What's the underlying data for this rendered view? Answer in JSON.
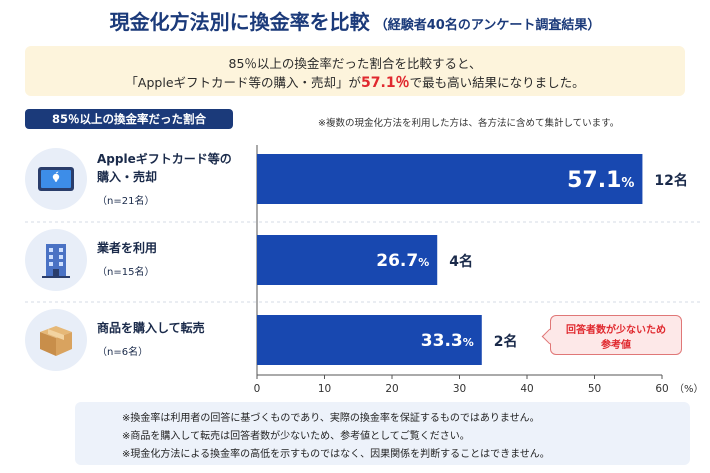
{
  "header": {
    "title": "現金化方法別に換金率を比較",
    "subtitle": "（経験者40名のアンケート調査結果）"
  },
  "summary": {
    "line1": "85％以上の換金率だった割合を比較すると、",
    "line2_pre": "「Appleギフトカード等の購入・売却」が",
    "line2_highlight": "57.1％",
    "line2_post": "で最も高い結果になりました。"
  },
  "section_label": "85％以上の換金率だった割合",
  "top_note": "※複数の現金化方法を利用した方は、各方法に含めて集計しています。",
  "rows": [
    {
      "label_line1": "Appleギフトカード等の",
      "label_line2": "購入・売却",
      "n": "（n=21名）",
      "icon": "tablet-icon"
    },
    {
      "label_line1": "業者を利用",
      "label_line2": "",
      "n": "（n=15名）",
      "icon": "building-icon"
    },
    {
      "label_line1": "商品を購入して転売",
      "label_line2": "",
      "n": "（n=6名）",
      "icon": "box-icon"
    }
  ],
  "callout": {
    "line1": "回答者数が少ないため",
    "line2": "参考値"
  },
  "footer": [
    "※換金率は利用者の回答に基づくものであり、実際の換金率を保証するものではありません。",
    "※商品を購入して転売は回答者数が少ないため、参考値としてご覧ください。",
    "※現金化方法による換金率の高低を示すものではなく、因果関係を判断することはできません。"
  ],
  "chart_data": {
    "type": "bar",
    "orientation": "horizontal",
    "categories": [
      "Appleギフトカード等の購入・売却",
      "業者を利用",
      "商品を購入して転売"
    ],
    "values": [
      57.1,
      26.7,
      33.3
    ],
    "value_labels": [
      "57.1",
      "26.7",
      "33.3"
    ],
    "value_unit": "%",
    "counts": [
      "12名",
      "4名",
      "2名"
    ],
    "xlim": [
      0,
      60
    ],
    "xticks": [
      0,
      10,
      20,
      30,
      40,
      50,
      60
    ],
    "x_unit_label": "（%）",
    "bar_color": "#1848b0"
  }
}
